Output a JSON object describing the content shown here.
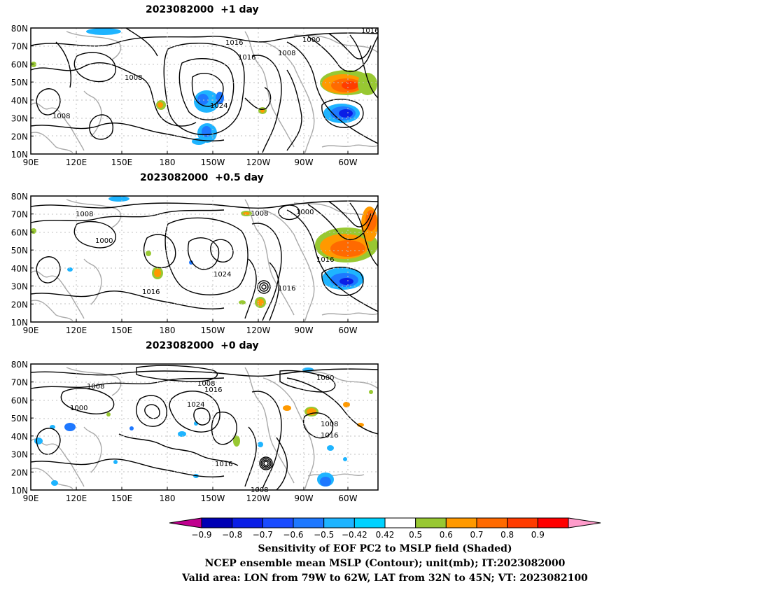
{
  "panels": [
    {
      "title": "2023082000  +1 day",
      "contour_labels": [
        "1016",
        "1000",
        "1016",
        "1008",
        "1016",
        "1008",
        "1024",
        "1008"
      ]
    },
    {
      "title": "2023082000  +0.5 day",
      "contour_labels": [
        "1008",
        "1008",
        "1000",
        "1000",
        "1016",
        "1024",
        "1016",
        "1016"
      ]
    },
    {
      "title": "2023082000  +0 day",
      "contour_labels": [
        "1008",
        "1008",
        "1016",
        "1000",
        "1000",
        "1024",
        "1008",
        "1016",
        "1016",
        "1008"
      ]
    }
  ],
  "axes": {
    "y_ticks": [
      "80N",
      "70N",
      "60N",
      "50N",
      "40N",
      "30N",
      "20N",
      "10N"
    ],
    "x_ticks": [
      "90E",
      "120E",
      "150E",
      "180",
      "150W",
      "120W",
      "90W",
      "60W"
    ]
  },
  "colorbar": {
    "tick_labels": [
      "−0.9",
      "−0.8",
      "−0.7",
      "−0.6",
      "−0.5",
      "−0.42",
      "0.42",
      "0.5",
      "0.6",
      "0.7",
      "0.8",
      "0.9"
    ],
    "colors": [
      "#c0008f",
      "#0000b4",
      "#0a1ee6",
      "#1a4bff",
      "#1e78ff",
      "#1eb4ff",
      "#00d2ff",
      "#ffffff",
      "#98c832",
      "#ff9900",
      "#ff6a00",
      "#ff3c00",
      "#ff0000",
      "#ff9ccb"
    ]
  },
  "caption": {
    "line1": "Sensitivity of EOF PC2 to MSLP field (Shaded)",
    "line2": "NCEP ensemble mean MSLP (Contour); unit(mb); IT:2023082000",
    "line3": "Valid area: LON from 79W to 62W, LAT from 32N to 45N; VT: 2023082100"
  }
}
